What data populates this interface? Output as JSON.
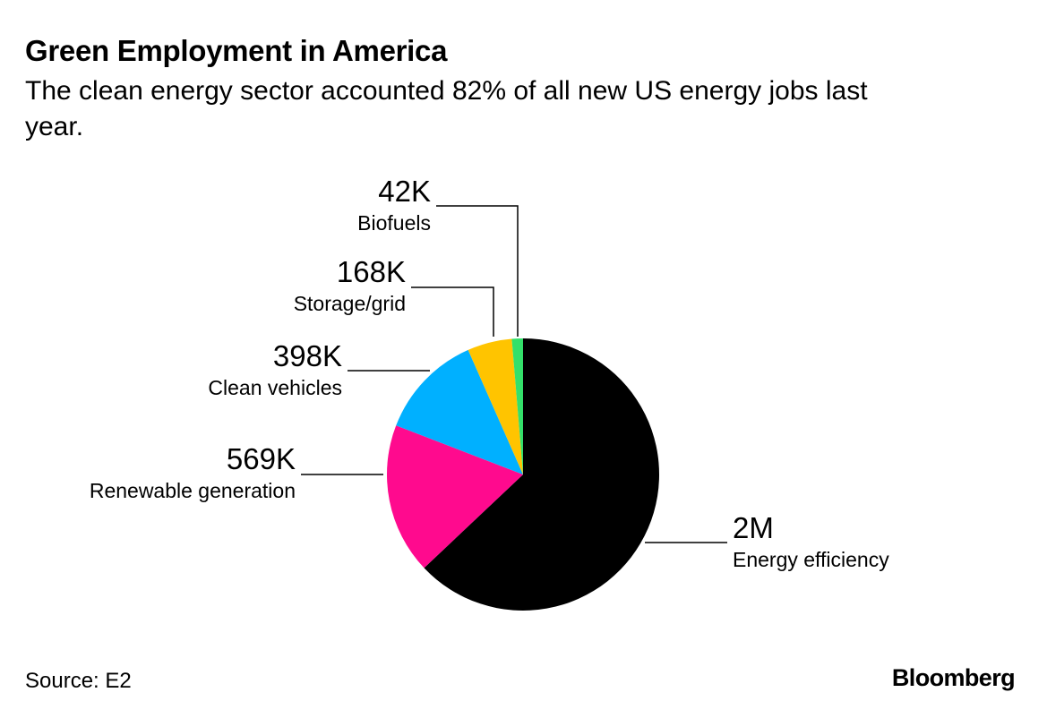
{
  "header": {
    "title": "Green Employment in America",
    "subtitle": "The clean energy sector accounted 82% of all new US energy jobs last year."
  },
  "footer": {
    "source": "Source: E2",
    "brand": "Bloomberg"
  },
  "chart_data": {
    "type": "pie",
    "title": "Green Employment in America",
    "subtitle": "The clean energy sector accounted 82% of all new US energy jobs last year.",
    "start_angle_deg": 0,
    "direction": "clockwise",
    "slices": [
      {
        "label": "Energy efficiency",
        "value": 2000000,
        "value_label": "2M",
        "color": "#000000",
        "label_side": "right"
      },
      {
        "label": "Renewable generation",
        "value": 569000,
        "value_label": "569K",
        "color": "#ff0a8e",
        "label_side": "left"
      },
      {
        "label": "Clean vehicles",
        "value": 398000,
        "value_label": "398K",
        "color": "#00b0ff",
        "label_side": "left"
      },
      {
        "label": "Storage/grid",
        "value": 168000,
        "value_label": "168K",
        "color": "#ffc400",
        "label_side": "left"
      },
      {
        "label": "Biofuels",
        "value": 42000,
        "value_label": "42K",
        "color": "#33e06a",
        "label_side": "left"
      }
    ],
    "legend": "none",
    "grid": false
  }
}
